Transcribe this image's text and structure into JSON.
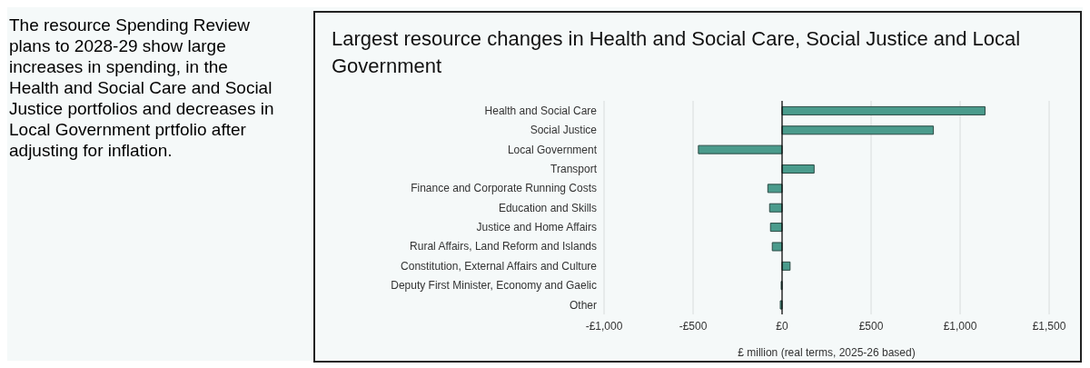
{
  "chart_data": {
    "type": "bar",
    "orientation": "horizontal",
    "title": "Largest resource changes in Health and Social Care, Social Justice and Local Government",
    "xlabel": "£ million (real terms, 2025-26 based)",
    "annotations": [
      "The resource Spending Review plans to 2028-29 show large increases in spending, in the Health and Social Care and Social Justice portfolios and decreases in Local Government prtfolio after adjusting for inflation."
    ],
    "categories": [
      "Health and Social Care",
      "Social Justice",
      "Local Government",
      "Transport",
      "Finance and Corporate Running Costs",
      "Education and Skills",
      "Justice and Home Affairs",
      "Rural Affairs, Land Reform and Islands",
      "Constitution, External Affairs and Culture",
      "Deputy First Minister, Economy and Gaelic",
      "Other"
    ],
    "values": [
      1140,
      850,
      -470,
      180,
      -80,
      -70,
      -65,
      -55,
      45,
      -5,
      -10
    ],
    "color": "#4a9b8c",
    "xlim": [
      -1000,
      1500
    ],
    "xticks": [
      {
        "value": -1000,
        "label": "-£1,000"
      },
      {
        "value": -500,
        "label": "-£500"
      },
      {
        "value": 0,
        "label": "£0"
      },
      {
        "value": 500,
        "label": "£500"
      },
      {
        "value": 1000,
        "label": "£1,000"
      },
      {
        "value": 1500,
        "label": "£1,500"
      }
    ],
    "grid": "x",
    "ref_lines": [
      {
        "axis": "x",
        "value": 0,
        "color": "#000000"
      }
    ]
  }
}
